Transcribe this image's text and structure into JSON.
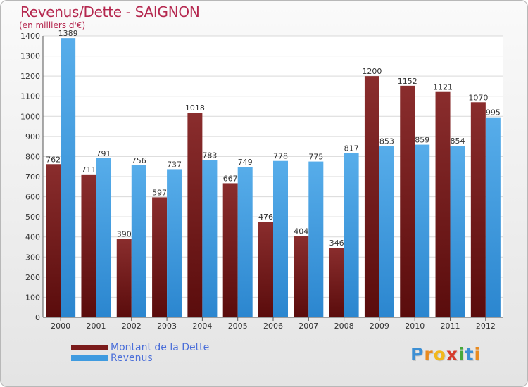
{
  "chart_data": {
    "type": "bar",
    "title": "Revenus/Dette - SAIGNON",
    "subtitle": "(en milliers d'€)",
    "categories": [
      "2000",
      "2001",
      "2002",
      "2003",
      "2004",
      "2005",
      "2006",
      "2007",
      "2008",
      "2009",
      "2010",
      "2011",
      "2012"
    ],
    "series": [
      {
        "name": "Montant de la Dette",
        "color": "#7a1b1b",
        "values": [
          762,
          711,
          390,
          597,
          1018,
          667,
          476,
          404,
          346,
          1200,
          1152,
          1121,
          1070
        ]
      },
      {
        "name": "Revenus",
        "color": "#3f9be0",
        "values": [
          1389,
          791,
          756,
          737,
          783,
          749,
          778,
          775,
          817,
          853,
          859,
          854,
          995
        ]
      }
    ],
    "ylim": [
      0,
      1400
    ],
    "yticks": [
      0,
      100,
      200,
      300,
      400,
      500,
      600,
      700,
      800,
      900,
      1000,
      1100,
      1200,
      1300,
      1400
    ],
    "grid": true,
    "legend_position": "bottom-left"
  },
  "brand": {
    "name": "Proxiti",
    "letters": [
      "P",
      "r",
      "o",
      "x",
      "i",
      "t",
      "i"
    ],
    "colors": [
      "#3c8fd4",
      "#e98a1e",
      "#f2b81b",
      "#d63a2a",
      "#47a83a",
      "#3c8fd4",
      "#e98a1e"
    ]
  }
}
